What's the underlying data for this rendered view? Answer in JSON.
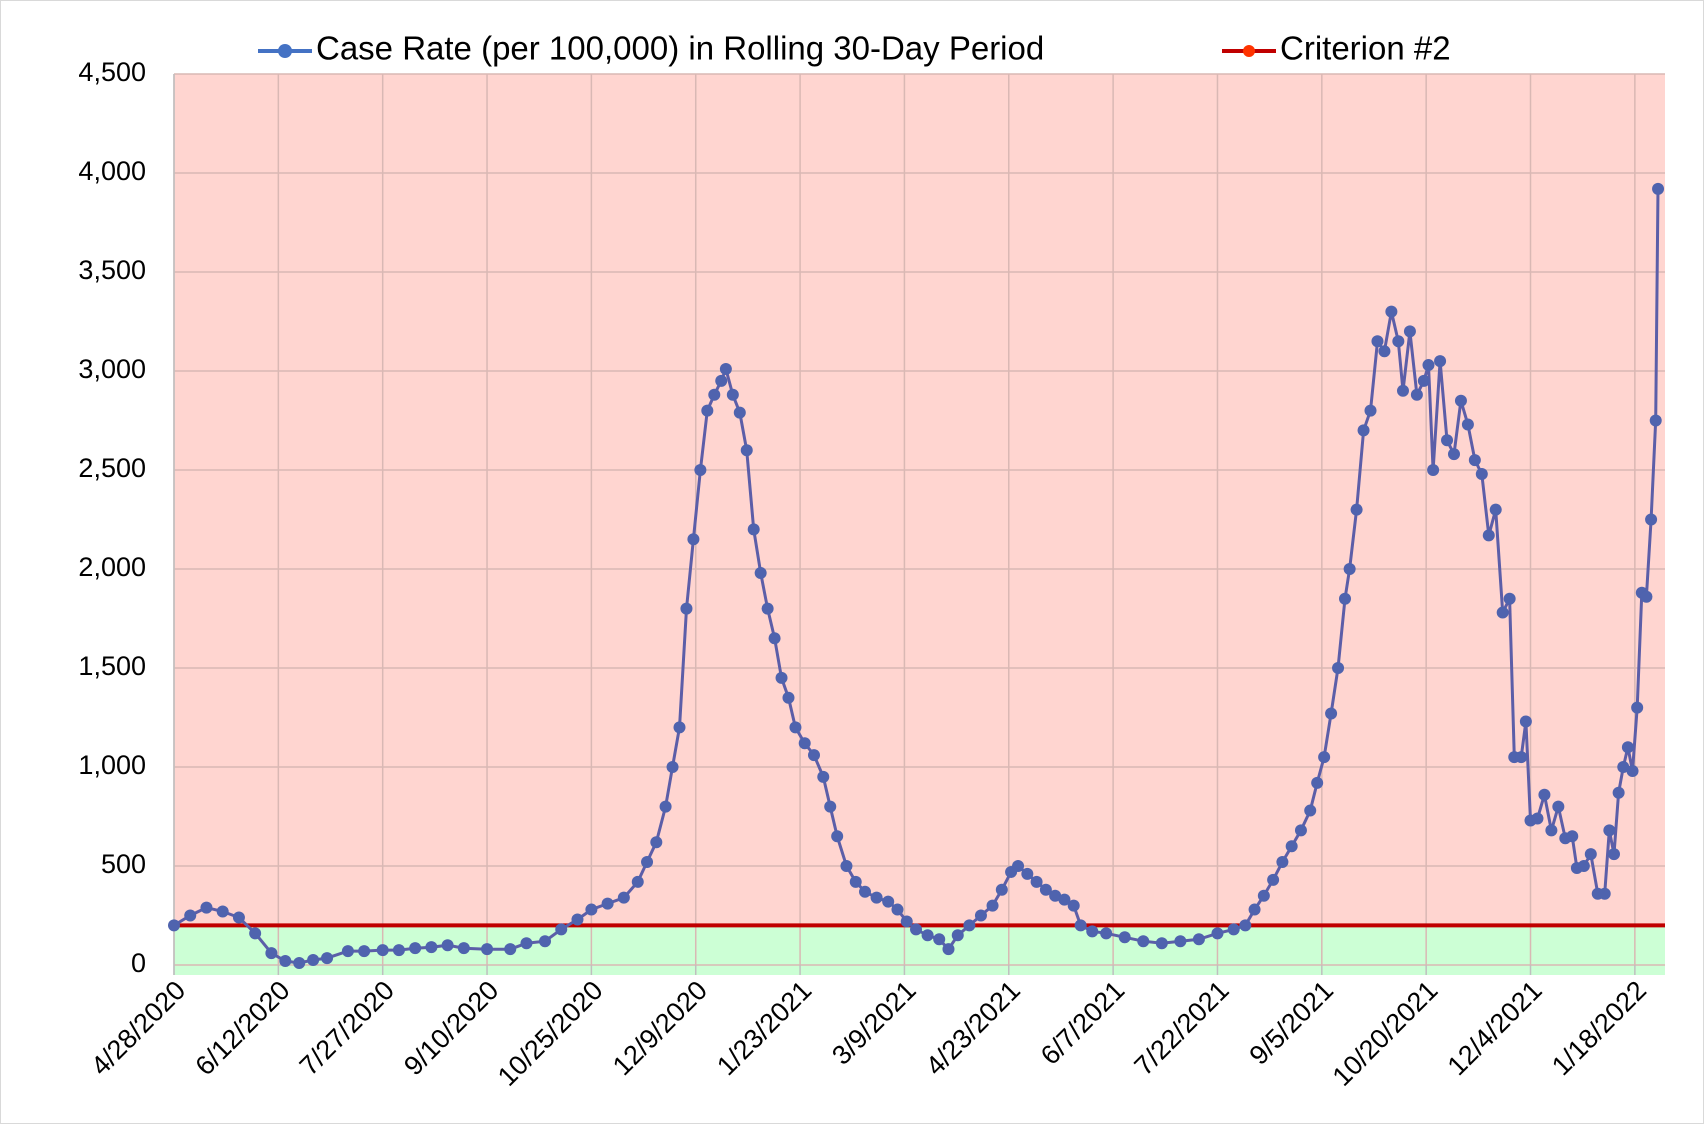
{
  "chart_data": {
    "type": "line",
    "x": [
      "4/28/2020",
      "5/5/2020",
      "5/12/2020",
      "5/19/2020",
      "5/26/2020",
      "6/2/2020",
      "6/9/2020",
      "6/15/2020",
      "6/21/2020",
      "6/27/2020",
      "7/3/2020",
      "7/12/2020",
      "7/19/2020",
      "7/27/2020",
      "8/3/2020",
      "8/10/2020",
      "8/17/2020",
      "8/24/2020",
      "8/31/2020",
      "9/10/2020",
      "9/20/2020",
      "9/27/2020",
      "10/5/2020",
      "10/12/2020",
      "10/19/2020",
      "10/25/2020",
      "11/1/2020",
      "11/8/2020",
      "11/14/2020",
      "11/18/2020",
      "11/22/2020",
      "11/26/2020",
      "11/29/2020",
      "12/2/2020",
      "12/5/2020",
      "12/8/2020",
      "12/11/2020",
      "12/14/2020",
      "12/17/2020",
      "12/20/2020",
      "12/22/2020",
      "12/25/2020",
      "12/28/2020",
      "12/31/2020",
      "1/3/2021",
      "1/6/2021",
      "1/9/2021",
      "1/12/2021",
      "1/15/2021",
      "1/18/2021",
      "1/21/2021",
      "1/25/2021",
      "1/29/2021",
      "2/2/2021",
      "2/5/2021",
      "2/8/2021",
      "2/12/2021",
      "2/16/2021",
      "2/20/2021",
      "2/25/2021",
      "3/2/2021",
      "3/6/2021",
      "3/10/2021",
      "3/14/2021",
      "3/19/2021",
      "3/24/2021",
      "3/28/2021",
      "4/1/2021",
      "4/6/2021",
      "4/11/2021",
      "4/16/2021",
      "4/20/2021",
      "4/24/2021",
      "4/27/2021",
      "5/1/2021",
      "5/5/2021",
      "5/9/2021",
      "5/13/2021",
      "5/17/2021",
      "5/21/2021",
      "5/24/2021",
      "5/29/2021",
      "6/4/2021",
      "6/12/2021",
      "6/20/2021",
      "6/28/2021",
      "7/6/2021",
      "7/14/2021",
      "7/22/2021",
      "7/29/2021",
      "8/3/2021",
      "8/7/2021",
      "8/11/2021",
      "8/15/2021",
      "8/19/2021",
      "8/23/2021",
      "8/27/2021",
      "8/31/2021",
      "9/3/2021",
      "9/6/2021",
      "9/9/2021",
      "9/12/2021",
      "9/15/2021",
      "9/17/2021",
      "9/20/2021",
      "9/23/2021",
      "9/26/2021",
      "9/29/2021",
      "10/2/2021",
      "10/5/2021",
      "10/8/2021",
      "10/10/2021",
      "10/13/2021",
      "10/16/2021",
      "10/19/2021",
      "10/21/2021",
      "10/23/2021",
      "10/26/2021",
      "10/29/2021",
      "11/1/2021",
      "11/4/2021",
      "11/7/2021",
      "11/10/2021",
      "11/13/2021",
      "11/16/2021",
      "11/19/2021",
      "11/22/2021",
      "11/25/2021",
      "11/27/2021",
      "11/30/2021",
      "12/2/2021",
      "12/4/2021",
      "12/7/2021",
      "12/10/2021",
      "12/13/2021",
      "12/16/2021",
      "12/19/2021",
      "12/22/2021",
      "12/24/2021",
      "12/27/2021",
      "12/30/2021",
      "1/2/2022",
      "1/5/2022",
      "1/7/2022",
      "1/9/2022",
      "1/11/2022",
      "1/13/2022",
      "1/15/2022",
      "1/17/2022",
      "1/19/2022",
      "1/21/2022",
      "1/23/2022",
      "1/25/2022",
      "1/27/2022",
      "1/28/2022"
    ],
    "series": [
      {
        "name": "Case Rate (per 100,000) in Rolling 30-Day Period",
        "color": "#5c5ea8",
        "marker_color": "#4f63ae",
        "legend_color": "#4472c4",
        "values": [
          200,
          250,
          290,
          270,
          240,
          160,
          60,
          20,
          10,
          25,
          35,
          70,
          70,
          75,
          75,
          85,
          90,
          100,
          85,
          80,
          80,
          110,
          120,
          180,
          230,
          280,
          310,
          340,
          420,
          520,
          620,
          800,
          1000,
          1200,
          1800,
          2150,
          2500,
          2800,
          2880,
          2950,
          3010,
          2880,
          2790,
          2600,
          2200,
          1980,
          1800,
          1650,
          1450,
          1350,
          1200,
          1120,
          1060,
          950,
          800,
          650,
          500,
          420,
          370,
          340,
          320,
          280,
          220,
          180,
          150,
          130,
          80,
          150,
          200,
          250,
          300,
          380,
          470,
          500,
          460,
          420,
          380,
          350,
          330,
          300,
          200,
          170,
          160,
          140,
          120,
          110,
          120,
          130,
          160,
          180,
          200,
          280,
          350,
          430,
          520,
          600,
          680,
          780,
          920,
          1050,
          1270,
          1500,
          1850,
          2000,
          2300,
          2700,
          2800,
          3150,
          3100,
          3300,
          3150,
          2900,
          3200,
          2880,
          2950,
          3030,
          2500,
          3050,
          2650,
          2580,
          2850,
          2730,
          2550,
          2480,
          2170,
          2300,
          1780,
          1850,
          1050,
          1050,
          1230,
          730,
          740,
          860,
          680,
          800,
          640,
          650,
          490,
          500,
          560,
          360,
          360,
          680,
          560,
          870,
          1000,
          1100,
          980,
          1300,
          1880,
          1860,
          2250,
          2750,
          3920
        ]
      }
    ],
    "reference_line": {
      "name": "Criterion #2",
      "value": 200,
      "color": "#c00000",
      "legend_marker_color": "#ff3300"
    },
    "zones": {
      "above": "#ffd5d0",
      "below": "#ccffd5"
    },
    "xlim": [
      "4/28/2020",
      "1/31/2022"
    ],
    "xticks": [
      "4/28/2020",
      "6/12/2020",
      "7/27/2020",
      "9/10/2020",
      "10/25/2020",
      "12/9/2020",
      "1/23/2021",
      "3/9/2021",
      "4/23/2021",
      "6/7/2021",
      "7/22/2021",
      "9/5/2021",
      "10/20/2021",
      "12/4/2021",
      "1/18/2022"
    ],
    "ylim": [
      0,
      4500
    ],
    "yticks": [
      0,
      500,
      {
        "value": 1000,
        "label": "1,000"
      },
      {
        "value": 1500,
        "label": "1,500"
      },
      {
        "value": 2000,
        "label": "2,000"
      },
      {
        "value": 2500,
        "label": "2,500"
      },
      {
        "value": 3000,
        "label": "3,000"
      },
      {
        "value": 3500,
        "label": "3,500"
      },
      {
        "value": 4000,
        "label": "4,000"
      },
      {
        "value": 4500,
        "label": "4,500"
      }
    ],
    "grid": true,
    "legend": "top"
  }
}
